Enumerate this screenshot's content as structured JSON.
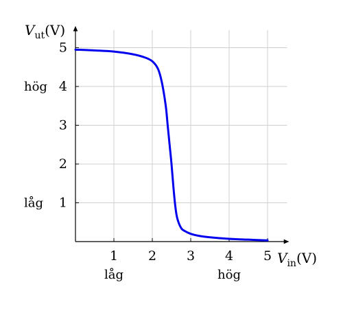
{
  "chart_data": {
    "type": "line",
    "title": "",
    "xlabel": {
      "var": "V",
      "sub": "in",
      "unit": "(V)"
    },
    "ylabel": {
      "var": "V",
      "sub": "ut",
      "unit": "(V)"
    },
    "xlim": [
      0,
      5.4
    ],
    "ylim": [
      0,
      5.4
    ],
    "xticks": [
      1,
      2,
      3,
      4,
      5
    ],
    "yticks": [
      1,
      2,
      3,
      4,
      5
    ],
    "xtick_labels": [
      "1",
      "2",
      "3",
      "4",
      "5"
    ],
    "ytick_labels": [
      "1",
      "2",
      "3",
      "4",
      "5"
    ],
    "grid": true,
    "x_annotations": [
      {
        "at": 1,
        "text": "låg"
      },
      {
        "at": 4,
        "text": "hög"
      }
    ],
    "y_annotations": [
      {
        "at": 4,
        "text": "hög"
      },
      {
        "at": 1,
        "text": "låg"
      }
    ],
    "series": [
      {
        "color": "#0000ee",
        "x": [
          0.0,
          0.5,
          1.0,
          1.5,
          1.8,
          2.0,
          2.15,
          2.25,
          2.35,
          2.4,
          2.45,
          2.5,
          2.55,
          2.6,
          2.65,
          2.75,
          2.85,
          3.0,
          3.2,
          3.5,
          4.0,
          4.5,
          5.0
        ],
        "y": [
          4.95,
          4.93,
          4.9,
          4.83,
          4.75,
          4.65,
          4.45,
          4.1,
          3.5,
          3.0,
          2.5,
          2.0,
          1.4,
          0.9,
          0.6,
          0.35,
          0.27,
          0.2,
          0.15,
          0.11,
          0.07,
          0.05,
          0.03
        ]
      }
    ]
  }
}
